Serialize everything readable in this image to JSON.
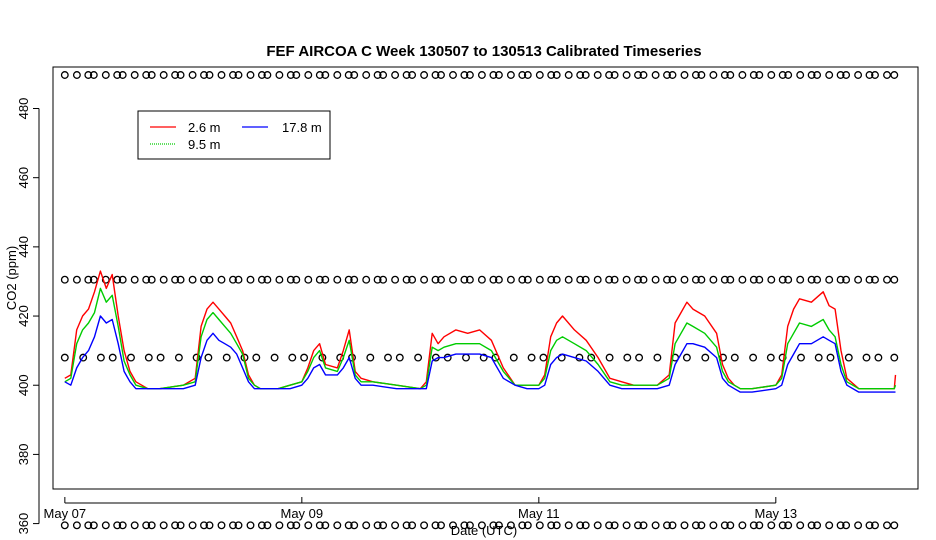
{
  "chart_data": {
    "type": "line",
    "title": "FEF AIRCOA C  Week 130507 to 130513  Calibrated Timeseries",
    "xlabel": "Date (UTC)",
    "ylabel": "CO2 (ppm)",
    "xlim_days": [
      -0.1,
      7.2
    ],
    "ylim": [
      370,
      492
    ],
    "x_ticks": [
      {
        "label": "May 07",
        "day": 0
      },
      {
        "label": "May 09",
        "day": 2
      },
      {
        "label": "May 11",
        "day": 4
      },
      {
        "label": "May 13",
        "day": 6
      }
    ],
    "y_ticks": [
      360,
      380,
      400,
      420,
      440,
      460,
      480
    ],
    "y_tick_labels": [
      "360",
      "380",
      "400",
      "420",
      "440",
      "460",
      "480"
    ],
    "legend": {
      "placement": "top-left",
      "entries": [
        {
          "name": "2.6 m",
          "color": "#ff0000"
        },
        {
          "name": "9.5 m",
          "color": "#00cc00"
        },
        {
          "name": "17.8 m",
          "color": "#0000ff"
        }
      ]
    },
    "calibration_levels": [
      359.5,
      408.0,
      430.5,
      489.7
    ],
    "series": [
      {
        "name": "2.6 m",
        "color": "#ff0000",
        "x": [
          0.0,
          0.05,
          0.1,
          0.15,
          0.2,
          0.25,
          0.3,
          0.35,
          0.4,
          0.45,
          0.5,
          0.55,
          0.6,
          0.7,
          0.8,
          1.0,
          1.1,
          1.15,
          1.2,
          1.25,
          1.3,
          1.35,
          1.4,
          1.45,
          1.5,
          1.55,
          1.6,
          1.65,
          1.7,
          1.8,
          1.9,
          2.0,
          2.05,
          2.1,
          2.15,
          2.2,
          2.3,
          2.35,
          2.4,
          2.45,
          2.5,
          2.6,
          2.8,
          3.0,
          3.05,
          3.1,
          3.15,
          3.2,
          3.3,
          3.4,
          3.5,
          3.6,
          3.7,
          3.8,
          3.9,
          4.0,
          4.05,
          4.1,
          4.15,
          4.2,
          4.3,
          4.4,
          4.5,
          4.6,
          4.7,
          4.8,
          5.0,
          5.1,
          5.15,
          5.2,
          5.25,
          5.3,
          5.4,
          5.5,
          5.55,
          5.6,
          5.65,
          5.7,
          5.8,
          6.0,
          6.05,
          6.1,
          6.15,
          6.2,
          6.3,
          6.4,
          6.45,
          6.5,
          6.55,
          6.6,
          6.7,
          6.8,
          6.9,
          7.0,
          7.01
        ],
        "values": [
          402,
          403,
          416,
          420,
          422,
          427,
          433,
          428,
          432,
          420,
          410,
          404,
          401,
          399,
          399,
          400,
          402,
          417,
          422,
          424,
          422,
          420,
          418,
          414,
          410,
          403,
          400,
          399,
          399,
          399,
          400,
          401,
          405,
          410,
          412,
          406,
          405,
          410,
          416,
          404,
          402,
          401,
          400,
          399,
          401,
          415,
          412,
          414,
          416,
          415,
          416,
          413,
          405,
          400,
          400,
          400,
          403,
          414,
          418,
          420,
          416,
          413,
          408,
          402,
          401,
          400,
          400,
          403,
          418,
          421,
          424,
          422,
          420,
          415,
          406,
          402,
          400,
          399,
          399,
          400,
          403,
          417,
          422,
          425,
          424,
          427,
          423,
          422,
          410,
          402,
          399,
          399,
          399,
          399,
          403
        ]
      },
      {
        "name": "9.5 m",
        "color": "#00cc00",
        "x": [
          0.0,
          0.05,
          0.1,
          0.15,
          0.2,
          0.25,
          0.3,
          0.35,
          0.4,
          0.45,
          0.5,
          0.55,
          0.6,
          0.7,
          0.8,
          1.0,
          1.1,
          1.15,
          1.2,
          1.25,
          1.3,
          1.35,
          1.4,
          1.45,
          1.5,
          1.55,
          1.6,
          1.65,
          1.7,
          1.8,
          1.9,
          2.0,
          2.05,
          2.1,
          2.15,
          2.2,
          2.3,
          2.35,
          2.4,
          2.45,
          2.5,
          2.6,
          2.8,
          3.0,
          3.05,
          3.1,
          3.15,
          3.2,
          3.3,
          3.4,
          3.5,
          3.6,
          3.7,
          3.8,
          3.9,
          4.0,
          4.05,
          4.1,
          4.15,
          4.2,
          4.3,
          4.4,
          4.5,
          4.6,
          4.7,
          4.8,
          5.0,
          5.1,
          5.15,
          5.2,
          5.25,
          5.3,
          5.4,
          5.5,
          5.55,
          5.6,
          5.65,
          5.7,
          5.8,
          6.0,
          6.05,
          6.1,
          6.15,
          6.2,
          6.3,
          6.4,
          6.45,
          6.5,
          6.55,
          6.6,
          6.7,
          6.8,
          6.9,
          7.0,
          7.01
        ],
        "values": [
          401,
          402,
          412,
          416,
          418,
          421,
          428,
          424,
          426,
          417,
          407,
          403,
          400,
          399,
          399,
          400,
          401,
          414,
          419,
          421,
          419,
          417,
          415,
          412,
          409,
          402,
          400,
          399,
          399,
          399,
          400,
          401,
          404,
          408,
          410,
          405,
          404,
          408,
          413,
          403,
          401,
          401,
          400,
          399,
          400,
          411,
          410,
          411,
          412,
          412,
          412,
          410,
          404,
          400,
          400,
          400,
          402,
          410,
          413,
          414,
          412,
          410,
          406,
          401,
          400,
          400,
          400,
          402,
          412,
          415,
          418,
          417,
          415,
          411,
          404,
          401,
          400,
          399,
          399,
          400,
          402,
          412,
          415,
          418,
          417,
          419,
          416,
          414,
          406,
          401,
          399,
          399,
          399,
          399,
          400
        ]
      },
      {
        "name": "17.8 m",
        "color": "#0000ff",
        "x": [
          0.0,
          0.05,
          0.1,
          0.15,
          0.2,
          0.25,
          0.3,
          0.35,
          0.4,
          0.45,
          0.5,
          0.55,
          0.6,
          0.7,
          0.8,
          1.0,
          1.1,
          1.15,
          1.2,
          1.25,
          1.3,
          1.35,
          1.4,
          1.45,
          1.5,
          1.55,
          1.6,
          1.65,
          1.7,
          1.8,
          1.9,
          2.0,
          2.05,
          2.1,
          2.15,
          2.2,
          2.3,
          2.35,
          2.4,
          2.45,
          2.5,
          2.6,
          2.8,
          3.0,
          3.05,
          3.1,
          3.15,
          3.2,
          3.3,
          3.4,
          3.5,
          3.6,
          3.7,
          3.8,
          3.9,
          4.0,
          4.05,
          4.1,
          4.15,
          4.2,
          4.3,
          4.4,
          4.5,
          4.6,
          4.7,
          4.8,
          5.0,
          5.1,
          5.15,
          5.2,
          5.25,
          5.3,
          5.4,
          5.5,
          5.55,
          5.6,
          5.65,
          5.7,
          5.8,
          6.0,
          6.05,
          6.1,
          6.15,
          6.2,
          6.3,
          6.4,
          6.45,
          6.5,
          6.55,
          6.6,
          6.7,
          6.8,
          6.9,
          7.0,
          7.01
        ],
        "values": [
          401,
          400,
          405,
          408,
          410,
          414,
          420,
          418,
          419,
          412,
          404,
          401,
          399,
          399,
          399,
          399,
          400,
          408,
          413,
          415,
          413,
          412,
          411,
          409,
          405,
          401,
          399,
          399,
          399,
          399,
          399,
          400,
          402,
          405,
          406,
          403,
          403,
          405,
          408,
          402,
          400,
          400,
          399,
          399,
          399,
          407,
          408,
          408,
          409,
          409,
          409,
          408,
          402,
          400,
          399,
          399,
          400,
          406,
          408,
          409,
          408,
          407,
          404,
          400,
          399,
          399,
          399,
          400,
          406,
          409,
          412,
          412,
          411,
          408,
          402,
          400,
          399,
          398,
          398,
          399,
          400,
          406,
          409,
          412,
          412,
          414,
          413,
          412,
          404,
          400,
          398,
          398,
          398,
          398,
          398
        ]
      }
    ]
  }
}
